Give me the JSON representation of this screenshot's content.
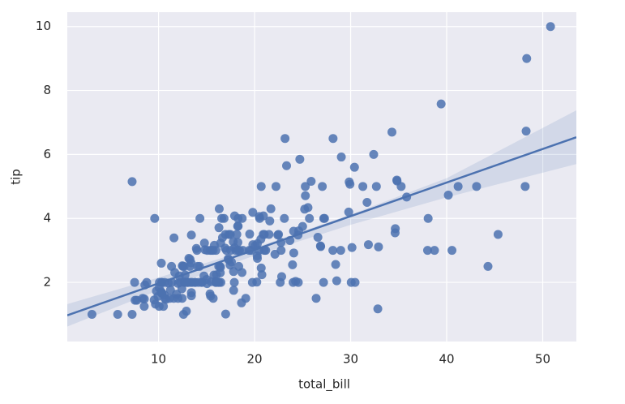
{
  "chart_data": {
    "type": "scatter",
    "x_label": "total_bill",
    "y_label": "tip",
    "xlim": [
      0.5,
      53.5
    ],
    "ylim": [
      0.15,
      10.45
    ],
    "xticks": [
      10,
      20,
      30,
      40,
      50
    ],
    "yticks": [
      2,
      4,
      6,
      8,
      10
    ],
    "grid": true,
    "color": "#4c72b0",
    "x": [
      16.99,
      10.34,
      21.01,
      23.68,
      24.59,
      25.29,
      8.77,
      26.88,
      15.04,
      14.78,
      10.27,
      35.26,
      15.42,
      18.43,
      14.83,
      21.58,
      10.33,
      16.29,
      16.97,
      20.65,
      17.92,
      20.29,
      15.77,
      39.42,
      19.82,
      17.81,
      13.37,
      12.69,
      21.7,
      19.65,
      9.55,
      18.35,
      15.06,
      20.69,
      17.78,
      24.06,
      16.31,
      16.93,
      18.69,
      31.27,
      16.04,
      17.46,
      13.94,
      9.68,
      30.4,
      18.29,
      22.23,
      32.4,
      28.55,
      18.04,
      12.54,
      10.29,
      34.81,
      9.94,
      25.56,
      19.49,
      38.01,
      26.41,
      11.24,
      48.27,
      20.29,
      13.81,
      11.02,
      18.29,
      17.59,
      20.08,
      16.45,
      3.07,
      20.23,
      15.01,
      12.02,
      17.07,
      26.86,
      25.28,
      14.73,
      10.51,
      17.92,
      27.2,
      22.76,
      17.29,
      19.44,
      16.66,
      10.07,
      32.68,
      15.98,
      34.83,
      13.03,
      18.28,
      24.71,
      21.16,
      28.97,
      22.49,
      5.75,
      16.32,
      22.75,
      40.17,
      27.28,
      12.03,
      21.01,
      12.46,
      11.35,
      15.38,
      44.3,
      22.42,
      20.92,
      15.36,
      20.49,
      25.21,
      18.24,
      14.31,
      14,
      7.25,
      38.07,
      23.95,
      25.71,
      17.31,
      29.93,
      10.65,
      12.43,
      24.08,
      11.69,
      13.42,
      14.26,
      15.95,
      12.48,
      29.8,
      8.52,
      14.52,
      11.38,
      22.82,
      19.08,
      20.27,
      11.17,
      12.26,
      18.26,
      8.51,
      10.33,
      14.15,
      16,
      13.16,
      17.47,
      34.3,
      41.19,
      27.05,
      16.43,
      8.35,
      18.64,
      11.87,
      9.78,
      7.51,
      14.07,
      13.13,
      17.26,
      24.55,
      19.77,
      29.85,
      48.17,
      25,
      13.39,
      16.49,
      21.5,
      12.66,
      16.21,
      13.81,
      17.51,
      24.52,
      20.76,
      31.71,
      10.59,
      10.63,
      50.81,
      15.81,
      7.25,
      31.85,
      16.82,
      32.9,
      17.89,
      14.48,
      9.6,
      34.63,
      34.65,
      23.33,
      45.35,
      23.17,
      40.55,
      20.69,
      20.9,
      30.46,
      18.15,
      23.1,
      15.69,
      19.81,
      28.44,
      15.48,
      16.58,
      7.56,
      10.34,
      43.11,
      13,
      13.51,
      18.71,
      12.74,
      13,
      16.4,
      20.53,
      16.47,
      26.59,
      38.73,
      24.27,
      12.76,
      30.06,
      25.89,
      48.33,
      13.27,
      28.17,
      12.9,
      28.15,
      11.59,
      7.74,
      30.14,
      12.16,
      13.42,
      8.58,
      15.98,
      13.42,
      16.27,
      10.09,
      20.45,
      13.28,
      22.12,
      24.01,
      15.69,
      11.61,
      10.77,
      15.53,
      10.07,
      12.6,
      32.83,
      35.83,
      29.03,
      27.18,
      22.67,
      17.82,
      18.78
    ],
    "values": [
      1.01,
      1.66,
      3.5,
      3.31,
      3.61,
      4.71,
      2,
      3.12,
      1.96,
      3.23,
      1.71,
      5,
      1.57,
      3,
      3.02,
      3.92,
      1.67,
      3.71,
      3.5,
      3.35,
      4.08,
      2.75,
      2.23,
      7.58,
      3.18,
      2.34,
      2,
      2,
      4.3,
      3,
      1.45,
      2.5,
      3,
      2.45,
      3.27,
      3.6,
      2,
      3.07,
      2.31,
      5,
      2.24,
      2.54,
      3.06,
      1.32,
      5.6,
      3,
      5,
      6,
      2.05,
      3,
      2.5,
      2.6,
      5.2,
      1.56,
      4.34,
      3.51,
      3,
      1.5,
      1.76,
      6.73,
      3.21,
      2,
      1.98,
      3.76,
      2.64,
      3.15,
      2.47,
      1,
      2.01,
      2.09,
      1.97,
      3,
      3.14,
      5,
      2.2,
      1.25,
      3.08,
      4,
      3,
      2.71,
      3,
      3.4,
      1.83,
      5,
      2.03,
      5.17,
      2,
      4,
      5.85,
      3,
      3,
      3.5,
      1,
      4.3,
      3.25,
      4.73,
      4,
      1.5,
      3,
      1.5,
      2.5,
      3,
      2.5,
      3.48,
      4.08,
      1.64,
      4.06,
      4.29,
      3.76,
      4,
      3,
      1,
      4,
      2.55,
      4,
      3.5,
      5.07,
      1.5,
      1.8,
      2.92,
      2.31,
      1.68,
      2.5,
      2,
      2.52,
      4.2,
      1.48,
      2,
      2,
      2.18,
      1.5,
      2.83,
      1.5,
      2,
      3.25,
      1.25,
      2,
      2,
      2,
      2.75,
      3.5,
      6.7,
      5,
      5,
      2.3,
      1.5,
      1.36,
      1.63,
      1.73,
      2,
      2.5,
      2,
      2.74,
      2,
      2,
      5.14,
      5,
      3.75,
      2.61,
      2,
      3.5,
      2.5,
      2,
      2,
      3,
      3.48,
      2.24,
      4.5,
      1.61,
      2,
      10,
      3.16,
      5.15,
      3.18,
      4,
      3.11,
      2,
      2,
      4,
      3.55,
      3.68,
      5.65,
      3.5,
      6.5,
      3,
      5,
      3.5,
      2,
      3.5,
      4,
      1.5,
      4.19,
      2.56,
      2.02,
      4,
      1.44,
      2,
      5,
      2,
      2,
      4,
      2.01,
      2,
      2.5,
      4,
      3.23,
      3.41,
      3,
      2.03,
      2.23,
      2,
      5.16,
      9,
      2.5,
      6.5,
      1.1,
      3,
      1.5,
      1.44,
      3.09,
      2.2,
      3.48,
      1.92,
      3,
      1.58,
      2.5,
      2,
      3,
      2.72,
      2.88,
      2,
      3,
      3.39,
      1.47,
      3,
      1.25,
      1,
      1.17,
      4.67,
      5.92,
      2,
      2,
      1.75,
      3
    ],
    "regression": {
      "x": [
        0.5,
        53.5
      ],
      "y": [
        0.97,
        6.54
      ]
    },
    "ci": {
      "x": [
        0.5,
        10,
        20,
        30,
        40,
        53.5
      ],
      "lower": [
        0.62,
        1.75,
        2.84,
        3.8,
        4.66,
        5.7
      ],
      "upper": [
        1.32,
        2.15,
        3.08,
        4.12,
        5.26,
        7.38
      ]
    }
  }
}
